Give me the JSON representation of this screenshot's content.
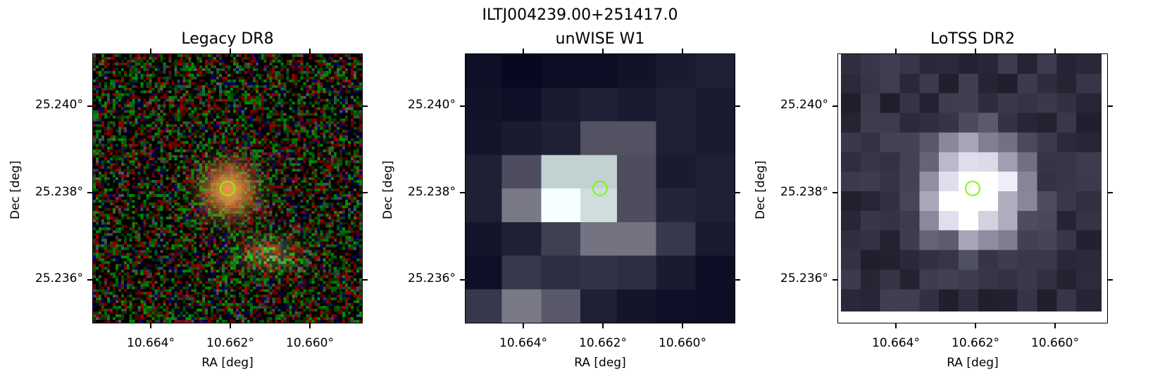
{
  "figure": {
    "title": "ILTJ004239.00+251417.0"
  },
  "panels": [
    {
      "title": "Legacy DR8",
      "image_kind": "color-noise-galaxies",
      "xlabel": "RA [deg]",
      "ylabel": "Dec [deg]",
      "xticks": [
        "10.664°",
        "10.662°",
        "10.660°"
      ],
      "yticks": [
        "25.240°",
        "25.238°",
        "25.236°"
      ],
      "marker_color": "#7cfc00"
    },
    {
      "title": "unWISE W1",
      "image_kind": "grayscale-blocky",
      "xlabel": "RA [deg]",
      "ylabel": "Dec [deg]",
      "xticks": [
        "10.664°",
        "10.662°",
        "10.660°"
      ],
      "yticks": [
        "25.240°",
        "25.238°",
        "25.236°"
      ],
      "marker_color": "#7cfc00"
    },
    {
      "title": "LoTSS DR2",
      "image_kind": "bone-colormap-grid",
      "xlabel": "RA [deg]",
      "ylabel": "Dec [deg]",
      "xticks": [
        "10.664°",
        "10.662°",
        "10.660°"
      ],
      "yticks": [
        "25.240°",
        "25.238°",
        "25.236°"
      ],
      "marker_color": "#7cfc00"
    }
  ]
}
